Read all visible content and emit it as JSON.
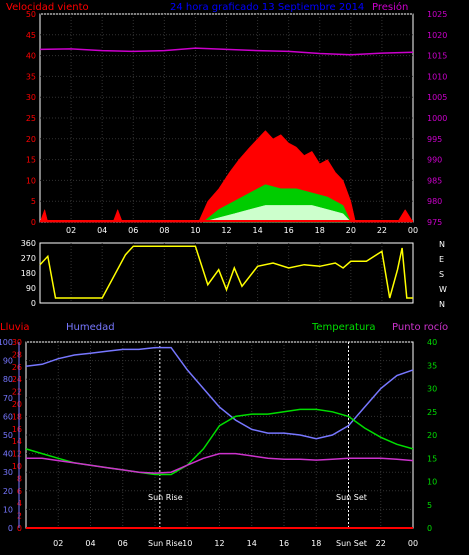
{
  "header": {
    "wind_speed_label": "Velocidad viento",
    "title": "24 hora graficado 13 Septiembre 2014",
    "pressure_label": "Presión"
  },
  "bottom_header": {
    "rain_label": "Lluvia",
    "humidity_label": "Humedad",
    "temperature_label": "Temperatura",
    "dewpoint_label": "Punto rocío"
  },
  "events": {
    "sunrise_label": "Sun Rise",
    "sunset_label": "Sun Set",
    "sunrise_axis_label": "Sun Rise",
    "sunset_axis_label": "Sun Set"
  },
  "colors": {
    "wind": "#ff0000",
    "gust": "#00cc00",
    "avg": "#ccffcc",
    "pressure": "#cc00cc",
    "direction": "#ffff00",
    "humidity": "#7777ff",
    "temperature": "#00dd00",
    "dewpoint": "#cc33cc",
    "rain": "#ff0000",
    "axis_title": "#0000ff"
  },
  "chart_data": [
    {
      "type": "area",
      "name": "wind_pressure",
      "x_ticks": [
        "02",
        "04",
        "06",
        "08",
        "10",
        "12",
        "14",
        "16",
        "18",
        "20",
        "22",
        "00"
      ],
      "left_axis": {
        "ticks": [
          0,
          5,
          10,
          15,
          20,
          25,
          30,
          35,
          40,
          45,
          50
        ],
        "range": [
          0,
          50
        ]
      },
      "right_axis": {
        "ticks": [
          975,
          980,
          985,
          990,
          995,
          1000,
          1005,
          1010,
          1015,
          1020,
          1025
        ],
        "range": [
          975,
          1025
        ]
      },
      "pressure": {
        "x": [
          0,
          2,
          4,
          6,
          8,
          10,
          12,
          14,
          16,
          18,
          20,
          22,
          24
        ],
        "y": [
          1016.5,
          1016.6,
          1016.2,
          1016.0,
          1016.2,
          1016.8,
          1016.5,
          1016.2,
          1016.0,
          1015.5,
          1015.2,
          1015.6,
          1015.8
        ]
      },
      "wind_max": {
        "x": [
          0,
          0.3,
          0.5,
          0.8,
          4.7,
          5.0,
          5.3,
          10.2,
          10.8,
          11.5,
          12.2,
          12.8,
          13.5,
          14.0,
          14.5,
          15.0,
          15.5,
          16.0,
          16.5,
          17.0,
          17.5,
          18.0,
          18.5,
          19.0,
          19.5,
          20.0,
          20.3,
          23.0,
          23.5,
          24.0
        ],
        "y": [
          0,
          3,
          0,
          0,
          0,
          3,
          0,
          0,
          5,
          8,
          12,
          15,
          18,
          20,
          22,
          20,
          21,
          19,
          18,
          16,
          17,
          14,
          15,
          12,
          10,
          5,
          0,
          0,
          3,
          0
        ]
      },
      "gust_max": {
        "x": [
          10.5,
          11.5,
          12.5,
          13.5,
          14.5,
          15.5,
          16.5,
          17.5,
          18.5,
          19.5,
          20.0
        ],
        "y": [
          0,
          3,
          5,
          7,
          9,
          8,
          8,
          7,
          6,
          4,
          0
        ]
      },
      "avg": {
        "x": [
          10.5,
          11.5,
          12.5,
          13.5,
          14.5,
          15.5,
          16.5,
          17.5,
          18.5,
          19.5,
          20.0
        ],
        "y": [
          0,
          1,
          2,
          3,
          4,
          4,
          4,
          4,
          3,
          2,
          0
        ]
      }
    },
    {
      "type": "line",
      "name": "wind_direction",
      "y_ticks": [
        0,
        90,
        180,
        270,
        360
      ],
      "y_labels": [
        "N",
        "W",
        "S",
        "E",
        "N"
      ],
      "range": [
        0,
        360
      ],
      "x": [
        0,
        0.5,
        1.0,
        2.5,
        4.0,
        5.5,
        6.0,
        7.5,
        8.8,
        9.3,
        10.0,
        10.8,
        11.5,
        12.0,
        12.5,
        13.0,
        14.0,
        15.0,
        16.0,
        17.0,
        18.0,
        19.0,
        19.5,
        20.0,
        21.0,
        22.0,
        22.5,
        23.0,
        23.3,
        23.6,
        24.0
      ],
      "y": [
        230,
        280,
        30,
        30,
        30,
        290,
        340,
        340,
        340,
        340,
        340,
        110,
        200,
        80,
        210,
        100,
        220,
        240,
        210,
        230,
        220,
        240,
        210,
        250,
        250,
        310,
        30,
        200,
        330,
        30,
        30
      ]
    },
    {
      "type": "line",
      "name": "humidity_temperature",
      "left_axis_rain": {
        "ticks": [
          0,
          2,
          4,
          6,
          8,
          10,
          12,
          14,
          16,
          18,
          20,
          22,
          24,
          26,
          28,
          30
        ],
        "range": [
          0,
          30
        ]
      },
      "left_axis_humidity": {
        "ticks": [
          0,
          10,
          20,
          30,
          40,
          50,
          60,
          70,
          80,
          90,
          100
        ],
        "range": [
          0,
          100
        ]
      },
      "right_axis_temp": {
        "ticks": [
          0,
          5,
          10,
          15,
          20,
          25,
          30,
          35,
          40
        ],
        "range": [
          0,
          40
        ]
      },
      "humidity": {
        "x": [
          0,
          1,
          2,
          3,
          4,
          5,
          6,
          7,
          8,
          9,
          10,
          11,
          12,
          13,
          14,
          15,
          16,
          17,
          18,
          19,
          20,
          21,
          22,
          23,
          24
        ],
        "y": [
          87,
          88,
          91,
          93,
          94,
          95,
          96,
          96,
          97,
          97,
          85,
          75,
          65,
          58,
          53,
          51,
          51,
          50,
          48,
          50,
          55,
          65,
          75,
          82,
          85
        ]
      },
      "temperature": {
        "x": [
          0,
          1,
          2,
          3,
          4,
          5,
          6,
          7,
          8,
          9,
          10,
          11,
          12,
          13,
          14,
          15,
          16,
          17,
          18,
          19,
          20,
          21,
          22,
          23,
          24
        ],
        "y": [
          17,
          16,
          15,
          14,
          13.5,
          13,
          12.5,
          12,
          11.5,
          11.5,
          13.5,
          17,
          22,
          24,
          24.5,
          24.5,
          25,
          25.5,
          25.5,
          25,
          24,
          21.5,
          19.5,
          18,
          17
        ]
      },
      "dewpoint": {
        "x": [
          0,
          1,
          2,
          3,
          4,
          5,
          6,
          7,
          8,
          9,
          10,
          11,
          12,
          13,
          14,
          15,
          16,
          17,
          18,
          19,
          20,
          21,
          22,
          23,
          24
        ],
        "y": [
          15,
          15,
          14.5,
          14,
          13.5,
          13,
          12.5,
          12,
          11.8,
          12,
          13.5,
          15,
          16,
          16,
          15.5,
          15,
          14.8,
          14.8,
          14.6,
          14.8,
          15,
          15,
          15,
          14.8,
          14.5
        ]
      },
      "rain": {
        "x": [
          0,
          24
        ],
        "y": [
          0,
          0
        ]
      },
      "sunrise_hour": 8.3,
      "sunset_hour": 20.0
    }
  ]
}
